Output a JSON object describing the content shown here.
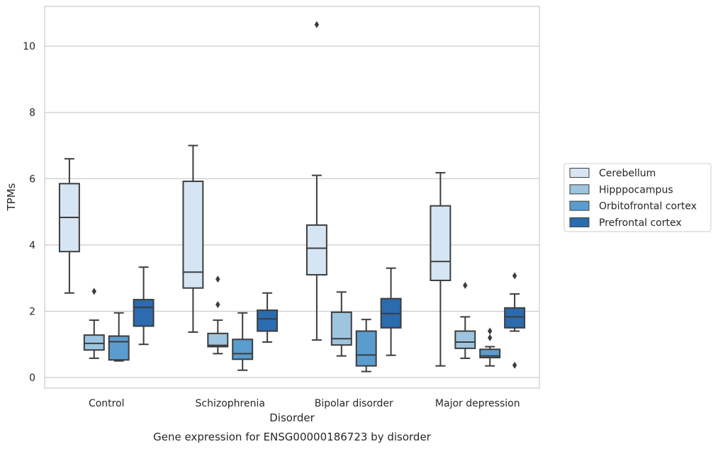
{
  "chart_data": {
    "type": "box",
    "caption": "Gene expression for ENSG00000186723 by disorder",
    "xlabel": "Disorder",
    "ylabel": "TPMs",
    "ylim": [
      -0.32,
      11.2
    ],
    "yticks": [
      "0",
      "2",
      "4",
      "6",
      "8",
      "10"
    ],
    "ytick_values": [
      0,
      2,
      4,
      6,
      8,
      10
    ],
    "grid": "horizontal",
    "legend_position": "right",
    "categories": [
      "Control",
      "Schizophrenia",
      "Bipolar disorder",
      "Major depression"
    ],
    "series": [
      {
        "name": "Cerebellum",
        "color": "#d6e5f3",
        "boxes": [
          {
            "whislo": 2.55,
            "q1": 3.8,
            "med": 4.83,
            "q3": 5.85,
            "whishi": 6.6,
            "fliers": []
          },
          {
            "whislo": 1.37,
            "q1": 2.7,
            "med": 3.18,
            "q3": 5.92,
            "whishi": 7.0,
            "fliers": []
          },
          {
            "whislo": 1.13,
            "q1": 3.1,
            "med": 3.9,
            "q3": 4.6,
            "whishi": 6.1,
            "fliers": [
              10.65
            ]
          },
          {
            "whislo": 0.35,
            "q1": 2.93,
            "med": 3.5,
            "q3": 5.18,
            "whishi": 6.18,
            "fliers": []
          }
        ]
      },
      {
        "name": "Hipppocampus",
        "color": "#9dc5df",
        "boxes": [
          {
            "whislo": 0.58,
            "q1": 0.83,
            "med": 1.03,
            "q3": 1.28,
            "whishi": 1.73,
            "fliers": [
              2.6
            ]
          },
          {
            "whislo": 0.72,
            "q1": 0.93,
            "med": 0.97,
            "q3": 1.33,
            "whishi": 1.73,
            "fliers": [
              2.97,
              2.2
            ]
          },
          {
            "whislo": 0.65,
            "q1": 0.98,
            "med": 1.17,
            "q3": 1.97,
            "whishi": 2.58,
            "fliers": []
          },
          {
            "whislo": 0.58,
            "q1": 0.88,
            "med": 1.07,
            "q3": 1.4,
            "whishi": 1.83,
            "fliers": [
              2.78
            ]
          }
        ]
      },
      {
        "name": "Orbitofrontal cortex",
        "color": "#5a9ccd",
        "boxes": [
          {
            "whislo": 0.5,
            "q1": 0.53,
            "med": 1.08,
            "q3": 1.25,
            "whishi": 1.95,
            "fliers": []
          },
          {
            "whislo": 0.22,
            "q1": 0.55,
            "med": 0.72,
            "q3": 1.15,
            "whishi": 1.95,
            "fliers": []
          },
          {
            "whislo": 0.18,
            "q1": 0.35,
            "med": 0.68,
            "q3": 1.4,
            "whishi": 1.75,
            "fliers": []
          },
          {
            "whislo": 0.35,
            "q1": 0.6,
            "med": 0.65,
            "q3": 0.85,
            "whishi": 0.93,
            "fliers": [
              1.4,
              1.2
            ]
          }
        ]
      },
      {
        "name": "Prefrontal cortex",
        "color": "#2b6bae",
        "boxes": [
          {
            "whislo": 1.0,
            "q1": 1.55,
            "med": 2.12,
            "q3": 2.35,
            "whishi": 3.33,
            "fliers": []
          },
          {
            "whislo": 1.07,
            "q1": 1.4,
            "med": 1.77,
            "q3": 2.03,
            "whishi": 2.55,
            "fliers": []
          },
          {
            "whislo": 0.67,
            "q1": 1.5,
            "med": 1.93,
            "q3": 2.38,
            "whishi": 3.3,
            "fliers": []
          },
          {
            "whislo": 1.4,
            "q1": 1.5,
            "med": 1.83,
            "q3": 2.1,
            "whishi": 2.52,
            "fliers": [
              3.07,
              0.37
            ]
          }
        ]
      }
    ]
  }
}
